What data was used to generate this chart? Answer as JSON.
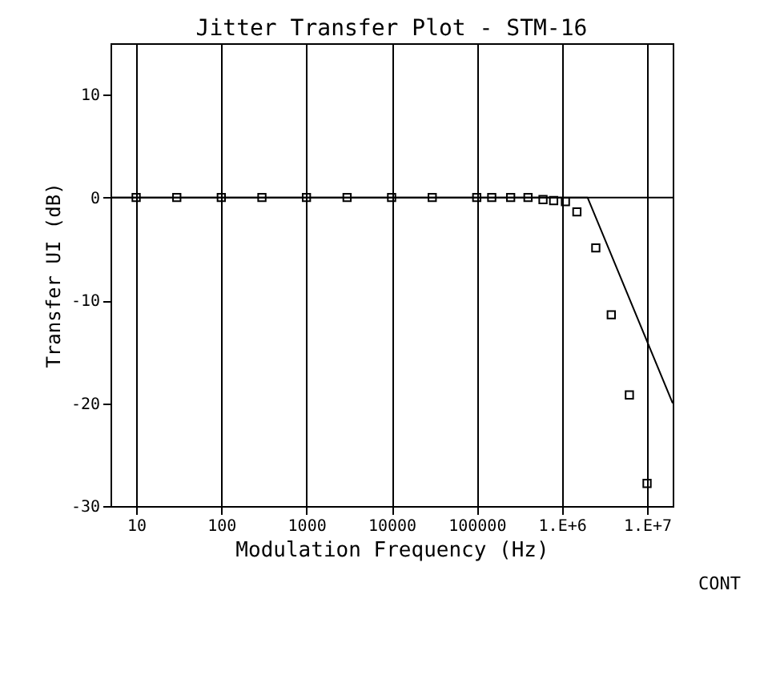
{
  "chart_data": {
    "type": "scatter",
    "title": "Jitter Transfer Plot - STM-16",
    "xlabel": "Modulation Frequency (Hz)",
    "ylabel": "Transfer UI (dB)",
    "log": "x",
    "grid": "x",
    "xlim": [
      5,
      20000000
    ],
    "xticks": [
      10,
      100,
      1000,
      10000,
      100000,
      {
        "value": 1000000,
        "label": "1.E+6"
      },
      {
        "value": 10000000,
        "label": "1.E+7"
      }
    ],
    "ylim": [
      -30,
      15
    ],
    "yticks": [
      -30,
      -20,
      -10,
      0,
      10
    ],
    "ref_lines": [
      {
        "axis": "y",
        "value": 0,
        "color": "#000000"
      }
    ],
    "annotations": [
      "CONT"
    ],
    "series": [
      {
        "marker": "square",
        "color": "#000000",
        "x": [
          10,
          30,
          100,
          300,
          1000,
          3000,
          10000,
          30000,
          100000,
          150000,
          250000,
          400000,
          600000,
          800000,
          1100000,
          1500000,
          2500000,
          3800000,
          6200000,
          10000000
        ],
        "values": [
          0,
          0,
          0,
          0,
          0,
          0,
          0,
          0,
          0,
          0,
          0,
          0,
          -0.2,
          -0.3,
          -0.4,
          -1.4,
          -4.9,
          -11.4,
          -19.2,
          -27.8
        ]
      },
      {
        "type": "line",
        "marker": "none",
        "line_style": "solid",
        "color": "#000000",
        "x": [
          5,
          2000000,
          20000000
        ],
        "values": [
          0,
          0,
          -20
        ]
      }
    ]
  }
}
